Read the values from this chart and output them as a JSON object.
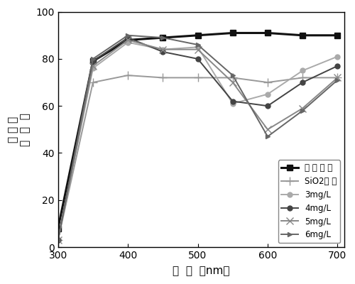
{
  "x": [
    300,
    350,
    400,
    450,
    500,
    550,
    600,
    650,
    700
  ],
  "series": [
    {
      "label": "玻 璃 基 片",
      "y": [
        8,
        79,
        88,
        89,
        90,
        91,
        91,
        90,
        90
      ],
      "color": "#111111",
      "linewidth": 2.2,
      "marker": "s",
      "markersize": 6,
      "linestyle": "-",
      "markerfacecolor": "#111111"
    },
    {
      "label": "SiO2镀 膜",
      "y": [
        3,
        70,
        73,
        72,
        72,
        72,
        70,
        72,
        72
      ],
      "color": "#999999",
      "linewidth": 1.4,
      "marker": "+",
      "markersize": 8,
      "linestyle": "-",
      "markerfacecolor": "#999999"
    },
    {
      "label": "3mg/L",
      "y": [
        3,
        76,
        87,
        84,
        85,
        61,
        65,
        75,
        81
      ],
      "color": "#aaaaaa",
      "linewidth": 1.4,
      "marker": "o",
      "markersize": 5,
      "linestyle": "-",
      "markerfacecolor": "#aaaaaa"
    },
    {
      "label": "4mg/L",
      "y": [
        3,
        79,
        89,
        83,
        80,
        62,
        60,
        70,
        77
      ],
      "color": "#444444",
      "linewidth": 1.4,
      "marker": "o",
      "markersize": 5,
      "linestyle": "-",
      "markerfacecolor": "#444444"
    },
    {
      "label": "5mg/L",
      "y": [
        3,
        77,
        88,
        84,
        84,
        70,
        50,
        59,
        72
      ],
      "color": "#888888",
      "linewidth": 1.4,
      "marker": "x",
      "markersize": 7,
      "linestyle": "-",
      "markerfacecolor": "#888888"
    },
    {
      "label": "6mg/L",
      "y": [
        3,
        80,
        90,
        89,
        86,
        73,
        47,
        58,
        71
      ],
      "color": "#666666",
      "linewidth": 1.4,
      "marker": ">",
      "markersize": 5,
      "linestyle": "-",
      "markerfacecolor": "#666666"
    }
  ],
  "xlabel_part1": "波  长",
  "xlabel_part2": "  （nm）",
  "ylabel_top": "（ ％ ）",
  "ylabel_main": "透  射  率",
  "xlim": [
    300,
    710
  ],
  "ylim": [
    0,
    100
  ],
  "xticks": [
    300,
    400,
    500,
    600,
    700
  ],
  "yticks": [
    0,
    20,
    40,
    60,
    80,
    100
  ],
  "background_color": "#ffffff",
  "legend_loc": "lower right",
  "axis_fontsize": 11,
  "tick_fontsize": 10
}
